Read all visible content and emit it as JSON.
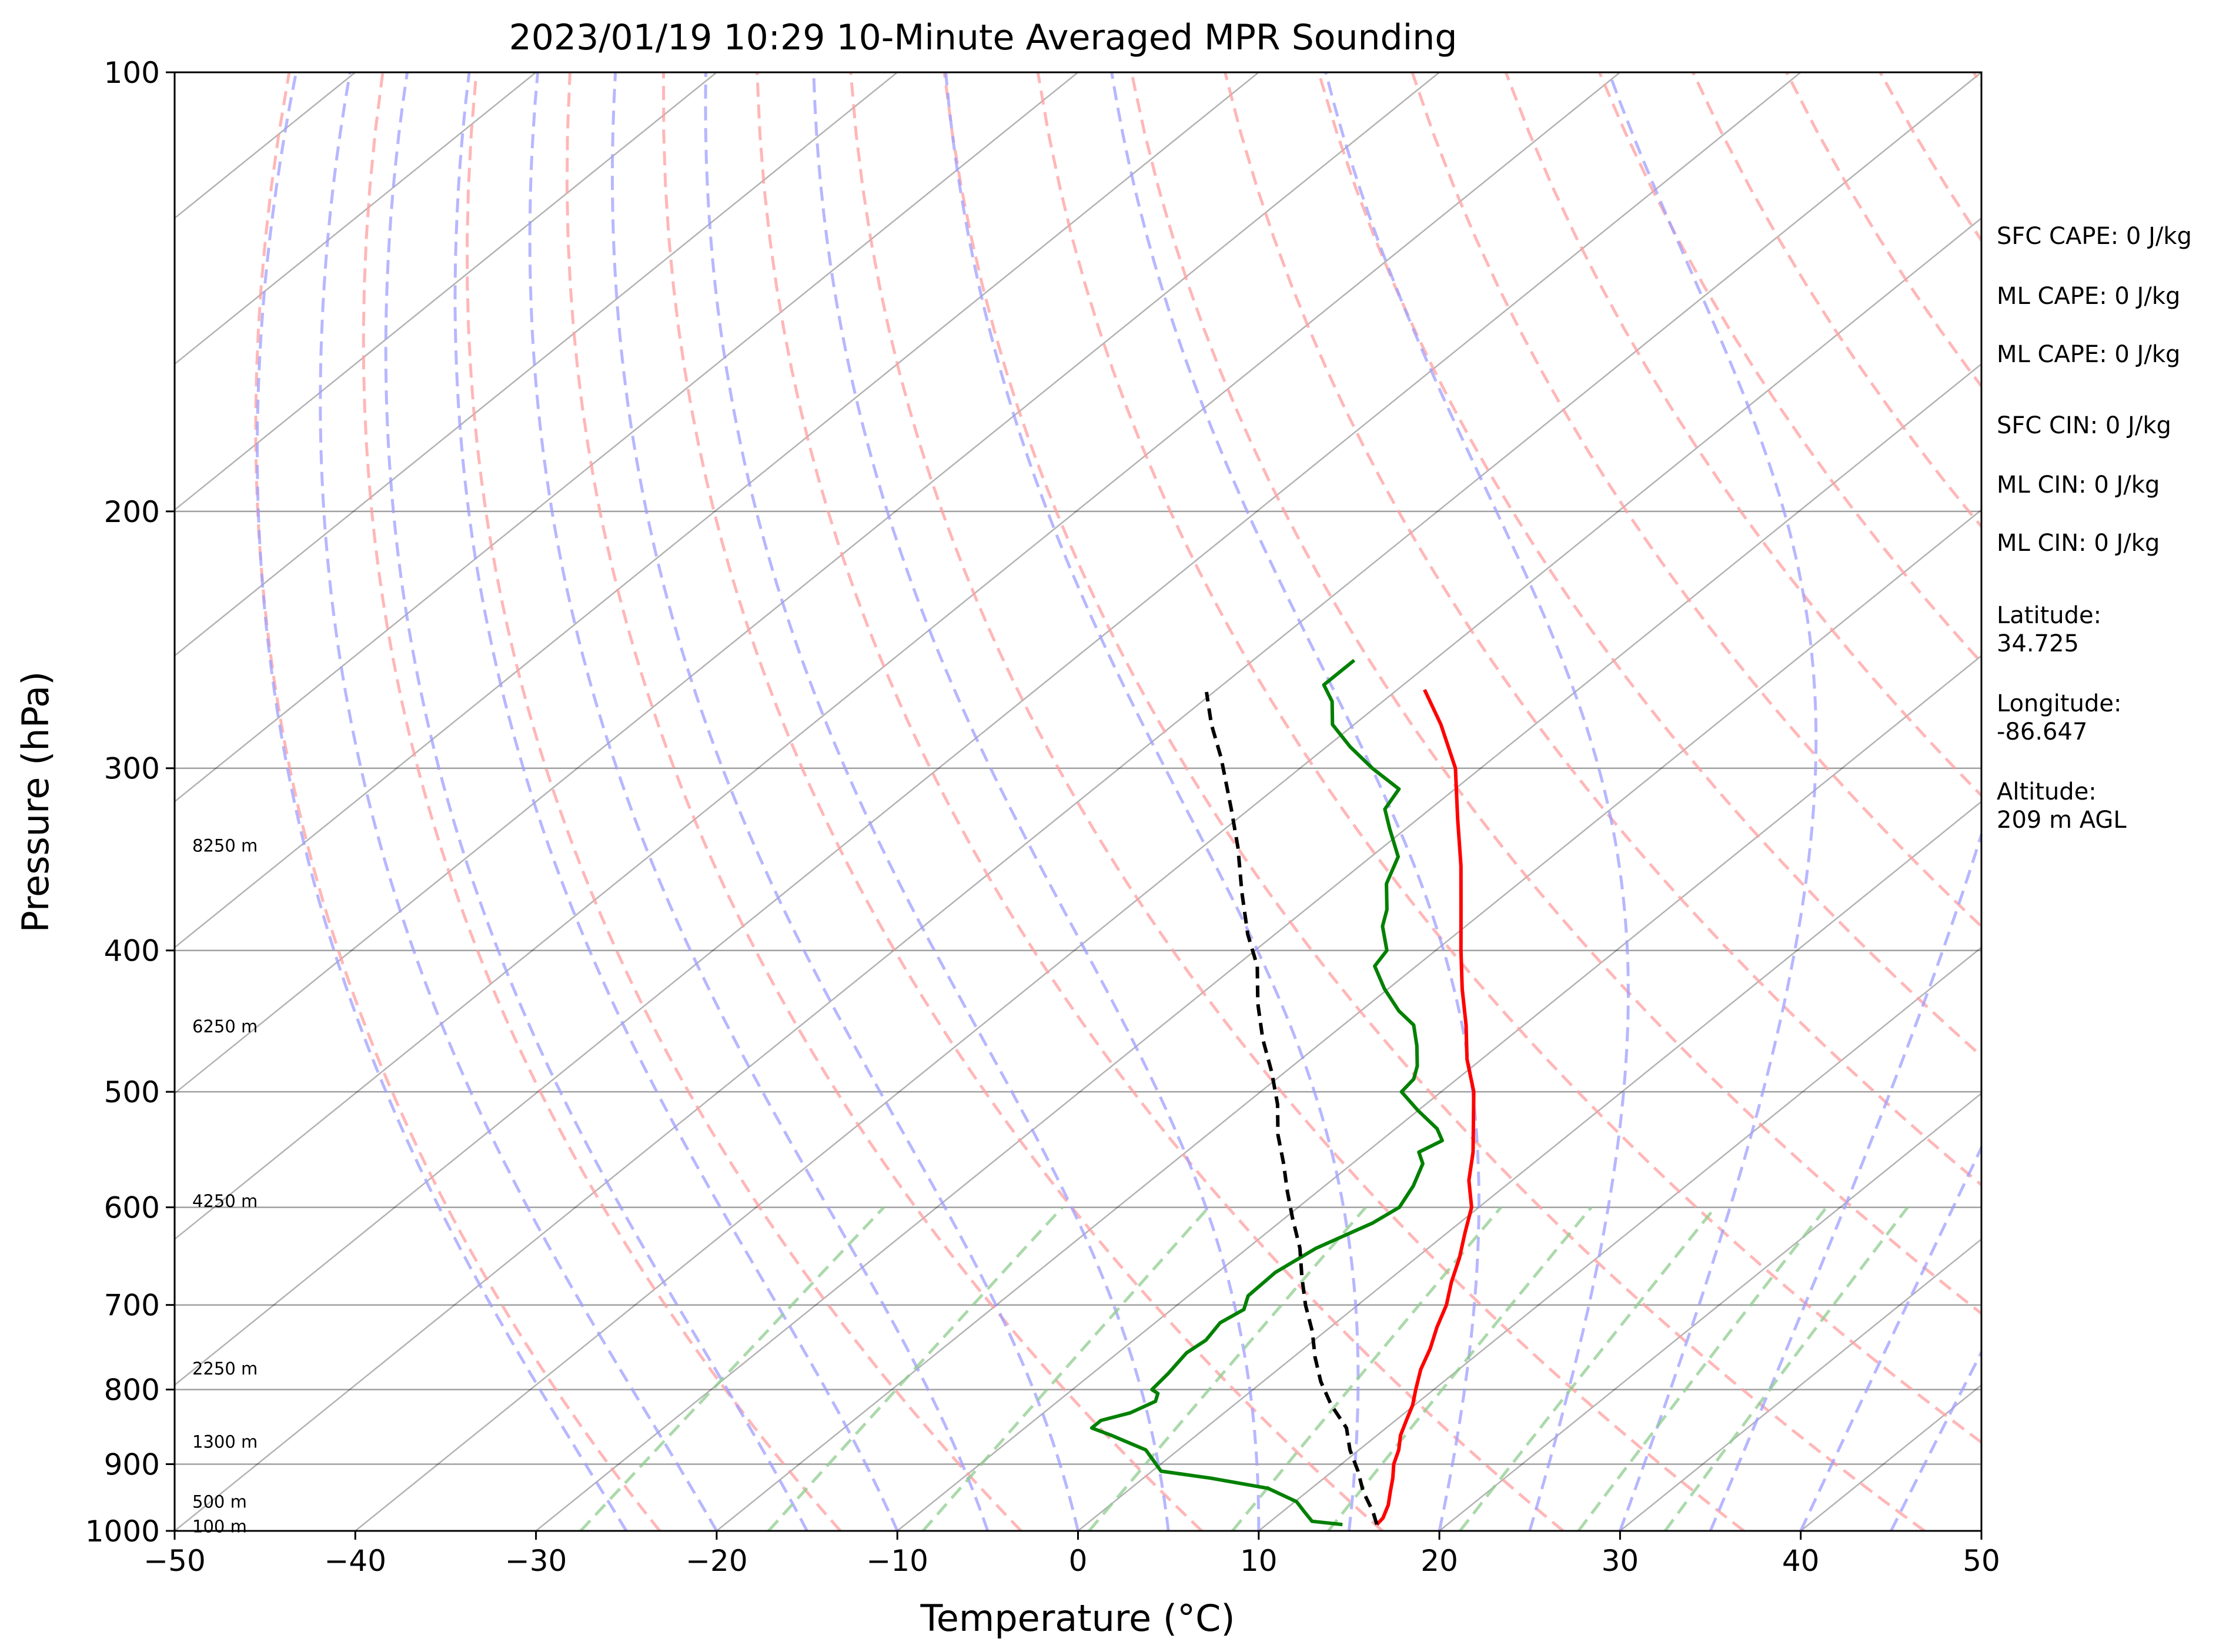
{
  "chart_data": {
    "type": "line",
    "title": "2023/01/19 10:29 10-Minute Averaged MPR Sounding",
    "xlabel": "Temperature (°C)",
    "ylabel": "Pressure (hPa)",
    "xlim": [
      -50,
      50
    ],
    "ylim": [
      1000,
      100
    ],
    "y_scale": "log",
    "skew_degrees": 45,
    "grid": true,
    "x_ticks": [
      -50,
      -40,
      -30,
      -20,
      -10,
      0,
      10,
      20,
      30,
      40,
      50
    ],
    "x_tick_labels": [
      "−50",
      "−40",
      "−30",
      "−20",
      "−10",
      "0",
      "10",
      "20",
      "30",
      "40",
      "50"
    ],
    "y_ticks": [
      1000,
      900,
      800,
      700,
      600,
      500,
      400,
      300,
      200,
      100
    ],
    "y_tick_labels": [
      "1000",
      "900",
      "800",
      "700",
      "600",
      "500",
      "400",
      "300",
      "200",
      "100"
    ],
    "series": [
      {
        "color": "#ff0000",
        "style": "solid",
        "points": [
          [
            16.1,
            990
          ],
          [
            16.0,
            980
          ],
          [
            15.4,
            960
          ],
          [
            14.6,
            940
          ],
          [
            13.8,
            920
          ],
          [
            12.9,
            900
          ],
          [
            12.2,
            880
          ],
          [
            11.3,
            860
          ],
          [
            10.6,
            840
          ],
          [
            9.9,
            820
          ],
          [
            9.0,
            800
          ],
          [
            7.9,
            775
          ],
          [
            7.0,
            750
          ],
          [
            5.9,
            725
          ],
          [
            4.9,
            700
          ],
          [
            3.6,
            675
          ],
          [
            2.4,
            650
          ],
          [
            1.0,
            625
          ],
          [
            -0.4,
            600
          ],
          [
            -2.4,
            575
          ],
          [
            -4.1,
            550
          ],
          [
            -6.1,
            525
          ],
          [
            -8.2,
            500
          ],
          [
            -10.8,
            475
          ],
          [
            -13.2,
            450
          ],
          [
            -15.9,
            425
          ],
          [
            -18.6,
            400
          ],
          [
            -21.4,
            375
          ],
          [
            -24.4,
            350
          ],
          [
            -27.8,
            325
          ],
          [
            -31.4,
            300
          ],
          [
            -35.2,
            280
          ],
          [
            -38.5,
            265
          ]
        ]
      },
      {
        "color": "#008000",
        "style": "solid",
        "points": [
          [
            14.2,
            990
          ],
          [
            12.3,
            985
          ],
          [
            11.2,
            970
          ],
          [
            10.1,
            955
          ],
          [
            7.6,
            935
          ],
          [
            3.7,
            920
          ],
          [
            0.5,
            910
          ],
          [
            -1.8,
            880
          ],
          [
            -4.7,
            860
          ],
          [
            -6.3,
            850
          ],
          [
            -6.3,
            840
          ],
          [
            -5.2,
            830
          ],
          [
            -4.6,
            815
          ],
          [
            -5.0,
            805
          ],
          [
            -5.6,
            800
          ],
          [
            -5.8,
            780
          ],
          [
            -6.2,
            755
          ],
          [
            -6.0,
            740
          ],
          [
            -6.4,
            720
          ],
          [
            -6.0,
            705
          ],
          [
            -6.7,
            690
          ],
          [
            -6.8,
            665
          ],
          [
            -6.2,
            640
          ],
          [
            -4.8,
            615
          ],
          [
            -4.4,
            600
          ],
          [
            -5.1,
            580
          ],
          [
            -6.1,
            560
          ],
          [
            -7.1,
            550
          ],
          [
            -6.6,
            540
          ],
          [
            -7.7,
            530
          ],
          [
            -10.0,
            515
          ],
          [
            -12.2,
            500
          ],
          [
            -12.4,
            490
          ],
          [
            -13.1,
            480
          ],
          [
            -14.5,
            465
          ],
          [
            -16.1,
            450
          ],
          [
            -17.9,
            440
          ],
          [
            -20.2,
            425
          ],
          [
            -22.3,
            410
          ],
          [
            -22.7,
            400
          ],
          [
            -24.6,
            385
          ],
          [
            -25.5,
            375
          ],
          [
            -27.3,
            360
          ],
          [
            -28.5,
            345
          ],
          [
            -30.9,
            330
          ],
          [
            -32.5,
            320
          ],
          [
            -33.1,
            310
          ],
          [
            -36.0,
            300
          ],
          [
            -38.7,
            290
          ],
          [
            -41.2,
            280
          ],
          [
            -42.8,
            270
          ],
          [
            -44.4,
            263
          ],
          [
            -44.4,
            253
          ]
        ]
      },
      {
        "color": "#000000",
        "style": "dashed",
        "points": [
          [
            16.1,
            990
          ],
          [
            15.0,
            970
          ],
          [
            13.1,
            940
          ],
          [
            11.4,
            910
          ],
          [
            9.5,
            880
          ],
          [
            7.8,
            850
          ],
          [
            5.4,
            820
          ],
          [
            3.2,
            790
          ],
          [
            1.2,
            760
          ],
          [
            -0.7,
            730
          ],
          [
            -2.9,
            700
          ],
          [
            -5.0,
            670
          ],
          [
            -7.1,
            640
          ],
          [
            -9.6,
            610
          ],
          [
            -11.7,
            585
          ],
          [
            -13.8,
            560
          ],
          [
            -16.1,
            535
          ],
          [
            -18.2,
            510
          ],
          [
            -20.7,
            485
          ],
          [
            -23.5,
            460
          ],
          [
            -26.2,
            435
          ],
          [
            -28.8,
            410
          ],
          [
            -31.5,
            390
          ],
          [
            -34.7,
            365
          ],
          [
            -38.0,
            340
          ],
          [
            -41.0,
            320
          ],
          [
            -45.1,
            295
          ],
          [
            -47.9,
            280
          ],
          [
            -50.4,
            266
          ]
        ]
      }
    ],
    "height_labels": [
      {
        "text": "100 m",
        "p": 993
      },
      {
        "text": "500 m",
        "p": 955
      },
      {
        "text": "1300 m",
        "p": 869
      },
      {
        "text": "2250 m",
        "p": 774
      },
      {
        "text": "4250 m",
        "p": 594
      },
      {
        "text": "6250 m",
        "p": 451
      },
      {
        "text": "8250 m",
        "p": 339
      }
    ],
    "dry_adiabat_thetas_K": [
      250,
      260,
      270,
      280,
      290,
      300,
      310,
      320,
      330,
      340,
      350,
      360,
      370,
      380,
      390,
      400,
      410,
      420,
      430
    ],
    "moist_adiabat_start_C": [
      -25,
      -20,
      -15,
      -10,
      -5,
      0,
      5,
      10,
      15,
      20,
      25,
      30,
      35,
      40,
      45
    ],
    "mixing_ratios_gkg": [
      0.4,
      1,
      2,
      4,
      7,
      10,
      16,
      24,
      32
    ],
    "colors": {
      "temperature": "#ff0000",
      "dewpoint": "#008000",
      "parcel": "#000000",
      "isotherm": "#000000",
      "dry_adiabat": "#ff9f9f",
      "moist_adiabat": "#9f9fff",
      "mixing_ratio": "#8fcc8f",
      "isobar": "#808080"
    }
  },
  "info_panel": {
    "sfc_cape": "SFC CAPE: 0 J/kg",
    "ml_cape_1": "ML CAPE: 0 J/kg",
    "ml_cape_2": "ML CAPE: 0 J/kg",
    "sfc_cin": "SFC CIN: 0 J/kg",
    "ml_cin_1": "ML CIN: 0 J/kg",
    "ml_cin_2": "ML CIN: 0 J/kg",
    "latitude_label": "Latitude:",
    "latitude_value": "34.725",
    "longitude_label": "Longitude:",
    "longitude_value": "-86.647",
    "altitude_label": "Altitude:",
    "altitude_value": "209 m AGL"
  }
}
